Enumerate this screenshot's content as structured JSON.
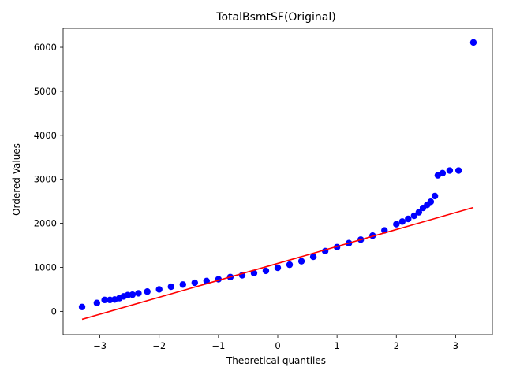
{
  "chart_data": {
    "type": "scatter",
    "title": "TotalBsmtSF(Original)",
    "xlabel": "Theoretical quantiles",
    "ylabel": "Ordered Values",
    "xlim": [
      -3.62,
      3.62
    ],
    "ylim": [
      -530,
      6430
    ],
    "xticks": [
      -3,
      -2,
      -1,
      0,
      1,
      2,
      3
    ],
    "yticks": [
      0,
      1000,
      2000,
      3000,
      4000,
      5000,
      6000
    ],
    "grid": false,
    "legend": "none",
    "colors": {
      "points": "#0000ff",
      "fit_line": "#ff0000"
    },
    "series": [
      {
        "kind": "points",
        "x": [
          -3.3,
          -3.05,
          -2.92,
          -2.83,
          -2.75,
          -2.67,
          -2.6,
          -2.53,
          -2.45,
          -2.35,
          -2.2,
          -2.0,
          -1.8,
          -1.6,
          -1.4,
          -1.2,
          -1.0,
          -0.8,
          -0.6,
          -0.4,
          -0.2,
          0.0,
          0.2,
          0.4,
          0.6,
          0.8,
          1.0,
          1.2,
          1.4,
          1.6,
          1.8,
          2.0,
          2.1,
          2.2,
          2.3,
          2.38,
          2.45,
          2.52,
          2.58,
          2.65,
          2.7,
          2.78,
          2.9,
          3.05,
          3.3
        ],
        "y": [
          100,
          190,
          260,
          260,
          270,
          300,
          340,
          370,
          380,
          410,
          450,
          500,
          560,
          610,
          650,
          690,
          730,
          780,
          820,
          870,
          920,
          990,
          1060,
          1140,
          1240,
          1370,
          1460,
          1550,
          1630,
          1720,
          1840,
          1980,
          2040,
          2100,
          2170,
          2250,
          2350,
          2420,
          2490,
          2620,
          3090,
          3140,
          3200,
          3200,
          6110
        ]
      },
      {
        "kind": "line",
        "x": [
          -3.3,
          3.3
        ],
        "y": [
          -180,
          2360
        ]
      }
    ]
  }
}
